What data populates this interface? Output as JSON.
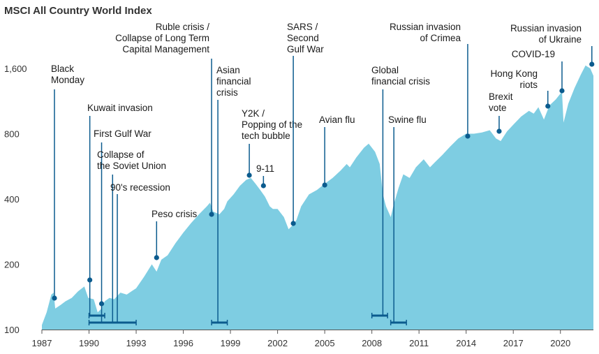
{
  "chart_data": {
    "type": "area",
    "title": "MSCI All Country World Index",
    "xlabel": "",
    "ylabel": "",
    "scale": "log",
    "xlim": [
      1987.0,
      2022.1
    ],
    "ylim": [
      100,
      2000
    ],
    "y_ticks": [
      100,
      200,
      400,
      800,
      1600
    ],
    "y_tick_labels": [
      "100",
      "200",
      "400",
      "800",
      "1,600"
    ],
    "x_ticks": [
      1987,
      1990,
      1993,
      1996,
      1999,
      2002,
      2005,
      2008,
      2011,
      2014,
      2017,
      2020
    ],
    "x_tick_labels": [
      "1987",
      "1990",
      "1993",
      "1996",
      "1999",
      "2002",
      "2005",
      "2008",
      "2011",
      "2014",
      "2017",
      "2020"
    ],
    "grid": false,
    "colors": {
      "area": "#7ecde2",
      "marker": "#0b5b8e",
      "text": "#1a1a1a"
    },
    "series": [
      {
        "x": [
          1987.0,
          1987.3,
          1987.6,
          1987.75,
          1987.85,
          1988.2,
          1988.5,
          1988.9,
          1989.3,
          1989.7,
          1989.95,
          1990.3,
          1990.55,
          1990.75,
          1991.0,
          1991.3,
          1991.6,
          1992.0,
          1992.4,
          1992.7,
          1993.0,
          1993.5,
          1994.0,
          1994.3,
          1994.6,
          1995.0,
          1995.5,
          1996.0,
          1996.5,
          1997.0,
          1997.5,
          1997.7,
          1997.9,
          1998.3,
          1998.6,
          1998.8,
          1999.2,
          1999.6,
          2000.0,
          2000.3,
          2000.6,
          2000.9,
          2001.2,
          2001.5,
          2001.7,
          2002.0,
          2002.4,
          2002.7,
          2002.9,
          2003.2,
          2003.5,
          2004.0,
          2004.5,
          2005.0,
          2005.5,
          2006.0,
          2006.4,
          2006.6,
          2007.0,
          2007.5,
          2007.8,
          2008.2,
          2008.5,
          2008.7,
          2008.9,
          2009.2,
          2009.4,
          2009.7,
          2010.0,
          2010.4,
          2010.8,
          2011.3,
          2011.7,
          2012.0,
          2012.5,
          2013.0,
          2013.5,
          2014.0,
          2014.5,
          2015.0,
          2015.5,
          2015.9,
          2016.2,
          2016.6,
          2017.0,
          2017.5,
          2018.0,
          2018.3,
          2018.6,
          2018.95,
          2019.3,
          2019.7,
          2020.1,
          2020.2,
          2020.5,
          2020.9,
          2021.3,
          2021.6,
          2021.9,
          2022.1
        ],
        "values": [
          105,
          120,
          145,
          148,
          125,
          130,
          135,
          140,
          150,
          158,
          140,
          138,
          120,
          124,
          135,
          140,
          138,
          148,
          145,
          150,
          155,
          175,
          200,
          185,
          210,
          220,
          250,
          280,
          310,
          340,
          370,
          385,
          350,
          340,
          360,
          390,
          420,
          460,
          490,
          500,
          470,
          440,
          410,
          370,
          360,
          360,
          330,
          290,
          300,
          320,
          370,
          420,
          440,
          470,
          500,
          540,
          580,
          560,
          620,
          690,
          720,
          660,
          580,
          420,
          370,
          330,
          380,
          450,
          520,
          500,
          560,
          610,
          560,
          590,
          640,
          700,
          760,
          800,
          800,
          810,
          830,
          760,
          740,
          820,
          880,
          960,
          1020,
          990,
          1060,
          930,
          1080,
          1150,
          1250,
          900,
          1100,
          1300,
          1500,
          1650,
          1600,
          1480
        ]
      }
    ],
    "annotations": [
      {
        "lines": [
          "Black",
          "Monday"
        ],
        "x": 1987.8,
        "y": 142
      },
      {
        "lines": [
          "Kuwait invasion"
        ],
        "x": 1990.05,
        "y": 158
      },
      {
        "lines": [
          "First Gulf War"
        ],
        "x": 1990.8,
        "y": 133
      },
      {
        "lines": [
          "Collapse of",
          "the Soviet Union"
        ],
        "x": 1991.5,
        "y": 135
      },
      {
        "lines": [
          "90's recession"
        ],
        "x": 1991.8,
        "y": 138
      },
      {
        "lines": [
          "Peso crisis"
        ],
        "x": 1994.3,
        "y": 212
      },
      {
        "lines": [
          "Ruble crisis /",
          "Collapse of Long Term",
          "Capital Management"
        ],
        "x": 1997.8,
        "y": 355
      },
      {
        "lines": [
          "Asian",
          "financial",
          "crisis"
        ],
        "x": 1998.2,
        "y": 355
      },
      {
        "lines": [
          "Y2K /",
          "Popping of the",
          "tech bubble"
        ],
        "x": 2000.2,
        "y": 490
      },
      {
        "lines": [
          "9-11"
        ],
        "x": 2001.1,
        "y": 448
      },
      {
        "lines": [
          "SARS /",
          "Second",
          "Gulf War"
        ],
        "x": 2003.0,
        "y": 318
      },
      {
        "lines": [
          "Avian flu"
        ],
        "x": 2005.0,
        "y": 450
      },
      {
        "lines": [
          "Global",
          "financial crisis"
        ],
        "x": 2008.7,
        "y": 700
      },
      {
        "lines": [
          "Swine flu"
        ],
        "x": 2009.4,
        "y": 380
      },
      {
        "lines": [
          "Russian invasion",
          "of Crimea"
        ],
        "x": 2014.1,
        "y": 780
      },
      {
        "lines": [
          "Brexit",
          "vote"
        ],
        "x": 2016.1,
        "y": 820
      },
      {
        "lines": [
          "Hong Kong",
          "riots"
        ],
        "x": 2019.2,
        "y": 1010
      },
      {
        "lines": [
          "COVID-19"
        ],
        "x": 2020.1,
        "y": 1200
      },
      {
        "lines": [
          "Russian invasion",
          "of Ukraine"
        ],
        "x": 2022.0,
        "y": 1650
      }
    ],
    "periods": [
      {
        "x0": 1990.0,
        "x1": 1991.0
      },
      {
        "x0": 1990.0,
        "x1": 1993.0
      },
      {
        "x0": 1997.8,
        "x1": 1998.8
      },
      {
        "x0": 2008.0,
        "x1": 2009.0
      },
      {
        "x0": 2009.2,
        "x1": 2010.2
      }
    ]
  }
}
